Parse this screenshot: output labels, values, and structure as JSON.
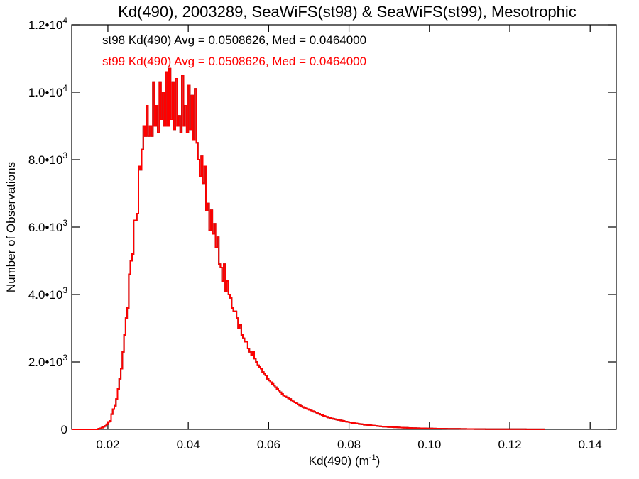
{
  "chart_data": {
    "type": "histogram",
    "title": "Kd(490), 2003289, SeaWiFS(st98) & SeaWiFS(st99), Mesotrophic",
    "xlabel": "Kd(490) (m",
    "xlabel_sup": "-1",
    "xlabel_end": ")",
    "ylabel": "Number of Observations",
    "xlim": [
      0.011,
      0.1465
    ],
    "ylim": [
      0,
      12000
    ],
    "x_ticks": [
      {
        "value": 0.02,
        "label": "0.02"
      },
      {
        "value": 0.04,
        "label": "0.04"
      },
      {
        "value": 0.06,
        "label": "0.06"
      },
      {
        "value": 0.08,
        "label": "0.08"
      },
      {
        "value": 0.1,
        "label": "0.10"
      },
      {
        "value": 0.12,
        "label": "0.12"
      },
      {
        "value": 0.14,
        "label": "0.14"
      }
    ],
    "y_ticks": [
      {
        "value": 0,
        "mant": "0",
        "exp": ""
      },
      {
        "value": 2000,
        "mant": "2.0•10",
        "exp": "3"
      },
      {
        "value": 4000,
        "mant": "4.0•10",
        "exp": "3"
      },
      {
        "value": 6000,
        "mant": "6.0•10",
        "exp": "3"
      },
      {
        "value": 8000,
        "mant": "8.0•10",
        "exp": "3"
      },
      {
        "value": 10000,
        "mant": "1.0•10",
        "exp": "4"
      },
      {
        "value": 12000,
        "mant": "1.2•10",
        "exp": "4"
      }
    ],
    "series": [
      {
        "name": "st98",
        "color": "#000000",
        "stats_text": "st98 Kd(490) Avg = 0.0508626, Med = 0.0464000"
      },
      {
        "name": "st99",
        "color": "#ff0000",
        "stats_text": "st99 Kd(490) Avg = 0.0508626, Med = 0.0464000"
      }
    ],
    "bin_width": 0.0004,
    "bin_start": 0.0136,
    "counts": [
      0,
      0,
      0,
      0,
      0,
      0,
      0,
      0,
      0,
      0,
      20,
      30,
      50,
      80,
      100,
      150,
      220,
      250,
      450,
      600,
      700,
      900,
      1200,
      1500,
      1800,
      2300,
      2800,
      3300,
      3600,
      4600,
      5000,
      5200,
      6200,
      6200,
      6400,
      7800,
      7700,
      8300,
      9000,
      8700,
      9600,
      8700,
      9000,
      8700,
      10300,
      9000,
      9600,
      8800,
      10300,
      9200,
      10000,
      9000,
      10600,
      9000,
      10700,
      9200,
      10300,
      8900,
      10400,
      9000,
      9300,
      8800,
      10500,
      9000,
      9600,
      8800,
      10200,
      8900,
      9900,
      8600,
      10100,
      8500,
      8000,
      7500,
      8100,
      7300,
      7800,
      6500,
      6700,
      5900,
      6500,
      5800,
      6100,
      5400,
      5700,
      4900,
      4800,
      4400,
      4900,
      4100,
      4400,
      4000,
      3900,
      3600,
      3500,
      3500,
      3300,
      3000,
      3100,
      2800,
      2700,
      2600,
      2600,
      2400,
      2300,
      2200,
      2300,
      2100,
      2000,
      1900,
      1850,
      1800,
      1700,
      1650,
      1600,
      1500,
      1450,
      1400,
      1350,
      1300,
      1250,
      1200,
      1150,
      1100,
      1050,
      1000,
      980,
      950,
      920,
      900,
      860,
      830,
      800,
      770,
      740,
      710,
      690,
      660,
      640,
      620,
      600,
      580,
      560,
      540,
      520,
      500,
      480,
      460,
      440,
      420,
      400,
      390,
      370,
      350,
      340,
      320,
      310,
      300,
      290,
      280,
      270,
      260,
      250,
      240,
      230,
      220,
      210,
      200,
      190,
      185,
      180,
      170,
      160,
      155,
      150,
      140,
      135,
      130,
      125,
      120,
      115,
      110,
      105,
      100,
      95,
      90,
      85,
      80,
      78,
      75,
      72,
      70,
      68,
      65,
      62,
      60,
      58,
      55,
      52,
      50,
      48,
      46,
      44,
      42,
      40,
      38,
      36,
      35,
      34,
      33,
      32,
      31,
      30,
      29,
      28,
      27,
      26,
      25,
      24,
      23,
      22,
      21,
      20,
      20,
      19,
      18,
      18,
      17,
      17,
      16,
      16,
      15,
      15,
      14,
      14,
      13,
      13,
      12,
      12,
      11,
      11,
      10,
      10,
      10,
      9,
      9,
      9,
      8,
      8,
      8,
      8,
      7,
      7,
      7,
      7,
      6,
      6,
      6,
      6,
      6,
      5,
      5,
      5,
      5,
      5,
      5,
      5,
      4,
      4,
      4,
      4,
      4,
      4,
      4,
      4,
      4,
      3,
      3,
      3,
      3,
      3,
      3,
      3,
      3,
      3,
      3,
      3,
      3
    ]
  }
}
